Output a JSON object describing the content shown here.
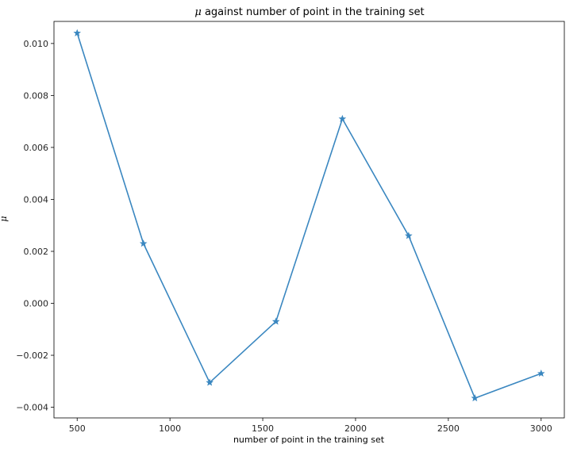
{
  "chart_data": {
    "type": "line",
    "title_symbol": "μ",
    "title_text": " against number of point in the training set",
    "xlabel": "number of point in the training set",
    "ylabel": "μ",
    "xlim": [
      375,
      3125
    ],
    "ylim": [
      -0.00441,
      0.01085
    ],
    "xticks": [
      500,
      1000,
      1500,
      2000,
      2500,
      3000
    ],
    "xtick_labels": [
      "500",
      "1000",
      "1500",
      "2000",
      "2500",
      "3000"
    ],
    "yticks": [
      -0.004,
      -0.002,
      0.0,
      0.002,
      0.004,
      0.006,
      0.008,
      0.01
    ],
    "ytick_labels": [
      "−0.004",
      "−0.002",
      "0.000",
      "0.002",
      "0.004",
      "0.006",
      "0.008",
      "0.010"
    ],
    "grid": false,
    "marker": "star",
    "series": [
      {
        "color": "#3a87c0",
        "x": [
          500,
          857,
          1214,
          1571,
          1929,
          2286,
          2643,
          3000
        ],
        "y": [
          0.0104,
          0.0023,
          -0.00305,
          -0.0007,
          0.0071,
          0.0026,
          -0.00365,
          -0.0027
        ]
      }
    ]
  }
}
